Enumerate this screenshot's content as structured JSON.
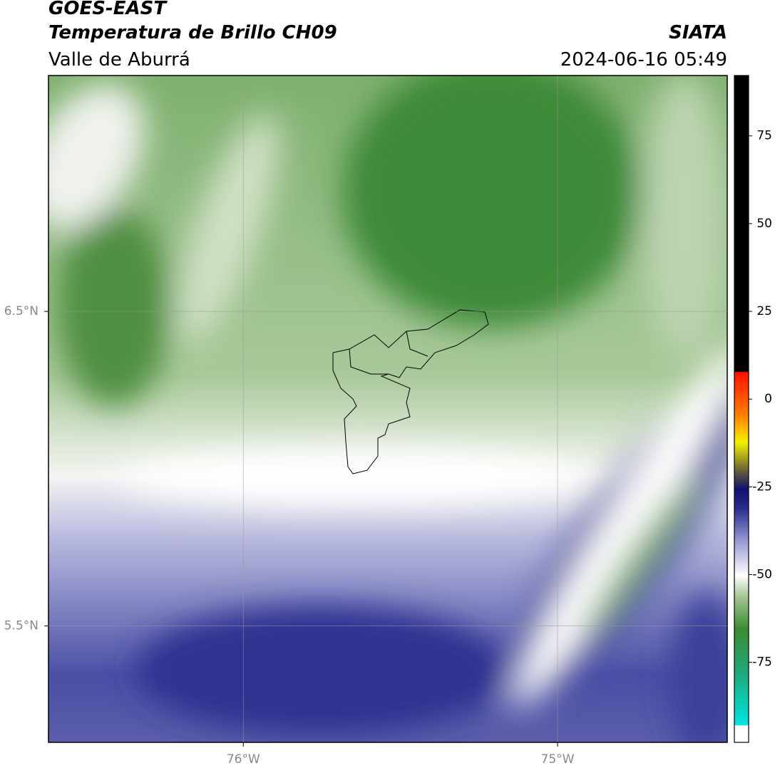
{
  "header": {
    "title": "GOES-EAST",
    "subtitle": "Temperatura de Brillo CH09",
    "region": "Valle de Aburrá",
    "agency": "SIATA",
    "datetime": "2024-06-16 05:49"
  },
  "map": {
    "xlim": [
      -76.62,
      -74.46
    ],
    "ylim": [
      5.13,
      7.25
    ],
    "lat_ticks": [
      {
        "value": 6.5,
        "label": "6.5°N"
      },
      {
        "value": 5.5,
        "label": "5.5°N"
      }
    ],
    "lon_ticks": [
      {
        "value": -76,
        "label": "76°W"
      },
      {
        "value": -75,
        "label": "75°W"
      }
    ]
  },
  "colorbar": {
    "lim": [
      -97.8,
      92.2
    ],
    "ticks": [
      75,
      50,
      25,
      0,
      -25,
      -50,
      -75
    ]
  }
}
